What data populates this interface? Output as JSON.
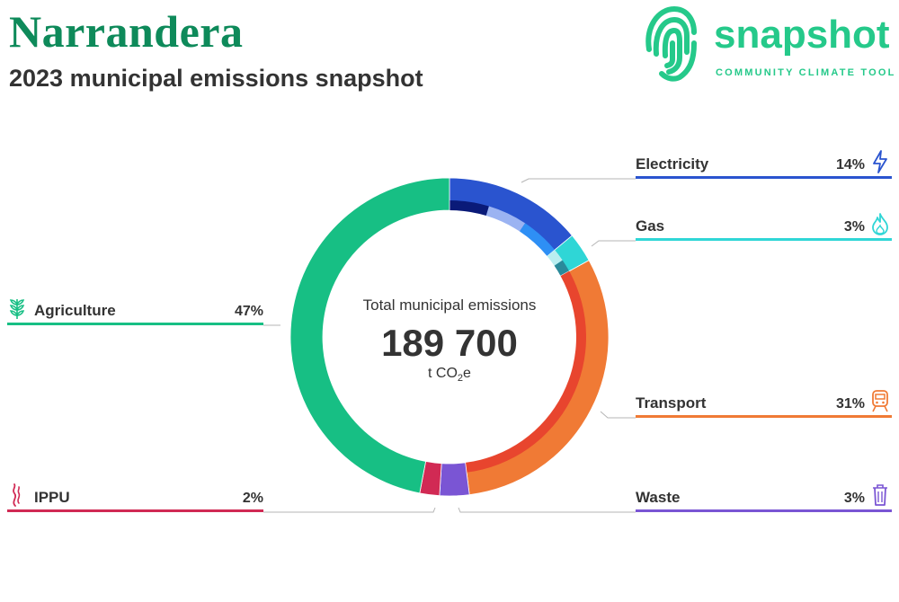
{
  "header": {
    "title": "Narrandera",
    "subtitle": "2023 municipal emissions snapshot"
  },
  "logo": {
    "wordmark": "snapshot",
    "tagline": "COMMUNITY CLIMATE TOOL",
    "icon": "fingerprint-icon"
  },
  "center": {
    "label": "Total municipal emissions",
    "value": "189 700",
    "unit": "t CO2e"
  },
  "chart_data": {
    "type": "pie",
    "variant": "donut",
    "total": 189700,
    "unit": "t CO2e",
    "categories": [
      "Electricity",
      "Gas",
      "Transport",
      "Waste",
      "IPPU",
      "Agriculture"
    ],
    "values": [
      14,
      3,
      31,
      3,
      2,
      47
    ],
    "value_format": "percent",
    "colors": [
      "#2a54cf",
      "#2fd6d6",
      "#f07a35",
      "#7a55d4",
      "#d12a54",
      "#17bf84"
    ],
    "icons": [
      "lightning-icon",
      "flame-icon",
      "train-icon",
      "bin-icon",
      "smoke-icon",
      "wheat-icon"
    ],
    "inner_ring_colors": {
      "Electricity": [
        "#0a1a78",
        "#9bb3f2",
        "#2e8ff5"
      ],
      "Gas": [
        "#b9eef0",
        "#2a8a9a"
      ],
      "Transport": [
        "#e8452e"
      ]
    }
  }
}
